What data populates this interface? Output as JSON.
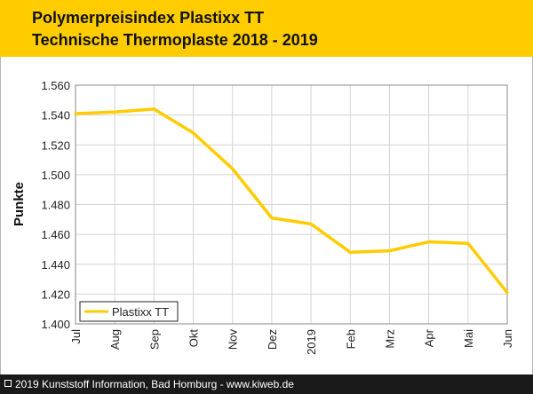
{
  "header": {
    "title_line1": "Polymerpreisindex Plastixx TT",
    "title_line2": "Technische Thermoplaste 2018 - 2019"
  },
  "footer": {
    "text": "2019 Kunststoff Information, Bad Homburg - www.kiweb.de"
  },
  "colors": {
    "header_bg": "#ffcc00",
    "series_line": "#ffcc00",
    "footer_bg": "#1a1a1a"
  },
  "chart_data": {
    "type": "line",
    "ylabel": "Punkte",
    "categories": [
      "Jul",
      "Aug",
      "Sep",
      "Okt",
      "Nov",
      "Dez",
      "2019",
      "Feb",
      "Mrz",
      "Apr",
      "Mai",
      "Jun"
    ],
    "y_tick_labels": [
      "1.400",
      "1.420",
      "1.440",
      "1.460",
      "1.480",
      "1.500",
      "1.520",
      "1.540",
      "1.560"
    ],
    "ylim": [
      1400,
      1560
    ],
    "grid": true,
    "legend_position": "bottom-left",
    "series": [
      {
        "name": "Plastixx TT",
        "color": "#ffcc00",
        "values": [
          1541,
          1542,
          1544,
          1528,
          1504,
          1471,
          1467,
          1448,
          1449,
          1455,
          1454,
          1421
        ]
      }
    ]
  }
}
